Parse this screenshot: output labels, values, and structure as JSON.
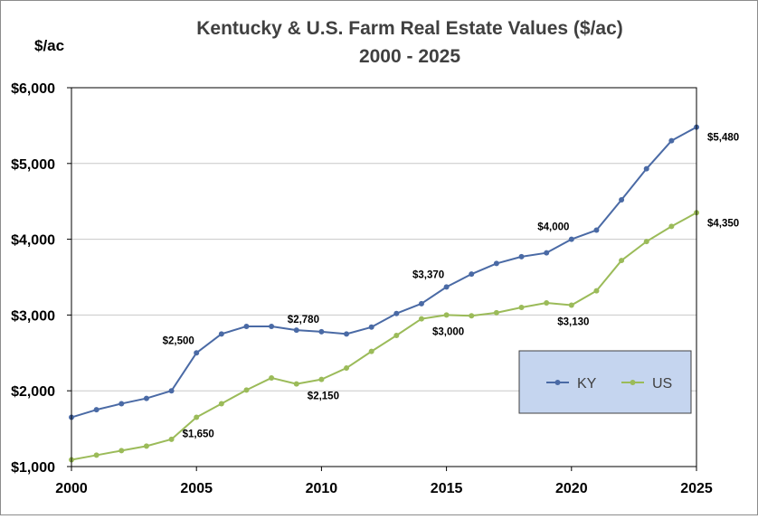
{
  "chart_data": {
    "type": "line",
    "title": "Kentucky & U.S. Farm Real Estate Values ($/ac)",
    "subtitle": "2000 - 2025",
    "ylabel": "$/ac",
    "xlabel": "",
    "xlim": [
      2000,
      2025
    ],
    "ylim": [
      1000,
      6000
    ],
    "x_ticks": [
      2000,
      2005,
      2010,
      2015,
      2020,
      2025
    ],
    "x_tick_labels": [
      "2000",
      "2005",
      "2010",
      "2015",
      "2020",
      "2025"
    ],
    "y_ticks": [
      1000,
      2000,
      3000,
      4000,
      5000,
      6000
    ],
    "y_tick_labels": [
      "$1,000",
      "$2,000",
      "$3,000",
      "$4,000",
      "$5,000",
      "$6,000"
    ],
    "grid": "horizontal",
    "legend_position": "lower-right",
    "x": [
      2000,
      2001,
      2002,
      2003,
      2004,
      2005,
      2006,
      2007,
      2008,
      2009,
      2010,
      2011,
      2012,
      2013,
      2014,
      2015,
      2016,
      2017,
      2018,
      2019,
      2020,
      2021,
      2022,
      2023,
      2024,
      2025
    ],
    "series": [
      {
        "name": "KY",
        "color": "#4a6aa5",
        "values": [
          1650,
          1750,
          1830,
          1900,
          2000,
          2500,
          2750,
          2850,
          2850,
          2800,
          2780,
          2750,
          2840,
          3020,
          3150,
          3370,
          3540,
          3680,
          3770,
          3820,
          4000,
          4120,
          4520,
          4930,
          5300,
          5480
        ],
        "labels": [
          {
            "x": 2005,
            "text": "$2,500",
            "pos": "above"
          },
          {
            "x": 2010,
            "text": "$2,780",
            "pos": "above"
          },
          {
            "x": 2015,
            "text": "$3,370",
            "pos": "above"
          },
          {
            "x": 2020,
            "text": "$4,000",
            "pos": "above"
          },
          {
            "x": 2025,
            "text": "$5,480",
            "pos": "right"
          }
        ]
      },
      {
        "name": "US",
        "color": "#9bbb59",
        "values": [
          1090,
          1150,
          1210,
          1270,
          1360,
          1650,
          1830,
          2010,
          2170,
          2090,
          2150,
          2300,
          2520,
          2730,
          2950,
          3000,
          2990,
          3030,
          3100,
          3160,
          3130,
          3320,
          3720,
          3970,
          4170,
          4350
        ],
        "labels": [
          {
            "x": 2005,
            "text": "$1,650",
            "pos": "below"
          },
          {
            "x": 2010,
            "text": "$2,150",
            "pos": "below"
          },
          {
            "x": 2015,
            "text": "$3,000",
            "pos": "below"
          },
          {
            "x": 2020,
            "text": "$3,130",
            "pos": "below"
          },
          {
            "x": 2025,
            "text": "$4,350",
            "pos": "right"
          }
        ]
      }
    ]
  }
}
